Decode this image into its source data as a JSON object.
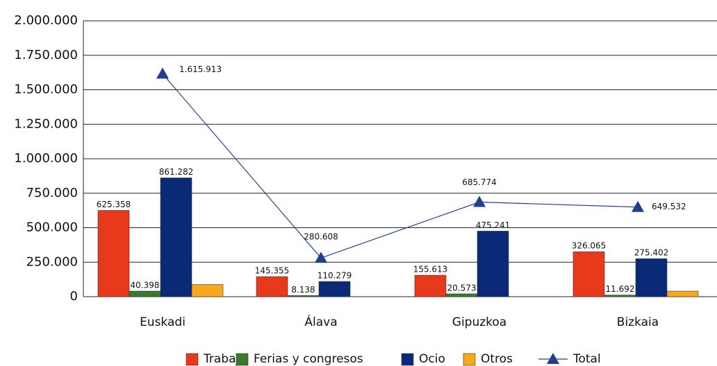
{
  "chart_data": {
    "type": "bar",
    "categories": [
      "Euskadi",
      "Álava",
      "Gipuzkoa",
      "Bizkaia"
    ],
    "series": [
      {
        "name": "Trabajo",
        "color": "#e8391d",
        "values": [
          625358,
          145355,
          155613,
          326065
        ],
        "value_labels": [
          "625.358",
          "145.355",
          "155.613",
          "326.065"
        ]
      },
      {
        "name": "Ferias y congresos",
        "color": "#3a7a2e",
        "values": [
          40398,
          8138,
          20573,
          11692
        ],
        "value_labels": [
          "40.398",
          "8.138",
          "20.573",
          "11.692"
        ]
      },
      {
        "name": "Ocio",
        "color": "#0a2a78",
        "values": [
          861282,
          110279,
          475241,
          275402
        ],
        "value_labels": [
          "861.282",
          "110.279",
          "475.241",
          "275.402"
        ]
      },
      {
        "name": "Otros",
        "color": "#f7a81b",
        "values": [
          88000,
          0,
          0,
          40000
        ]
      },
      {
        "name": "Total",
        "type": "line",
        "color": "#1f3f8f",
        "values": [
          1615913,
          280608,
          685774,
          649532
        ],
        "value_labels": [
          "1.615.913",
          "280.608",
          "685.774",
          "649.532"
        ]
      }
    ],
    "ylim": [
      0,
      2000000
    ],
    "yticks": [
      0,
      {
        "value": 250000,
        "label": "250.000"
      },
      {
        "value": 500000,
        "label": "500.000"
      },
      {
        "value": 750000,
        "label": "750.000"
      },
      {
        "value": 1000000,
        "label": "1.000.000"
      },
      {
        "value": 1250000,
        "label": "1.250.000"
      },
      {
        "value": 1500000,
        "label": "1.500.000"
      },
      {
        "value": 1750000,
        "label": "1.750.000"
      },
      {
        "value": 2000000,
        "label": "2.000.000"
      }
    ],
    "grid": true,
    "legend": "bottom"
  }
}
